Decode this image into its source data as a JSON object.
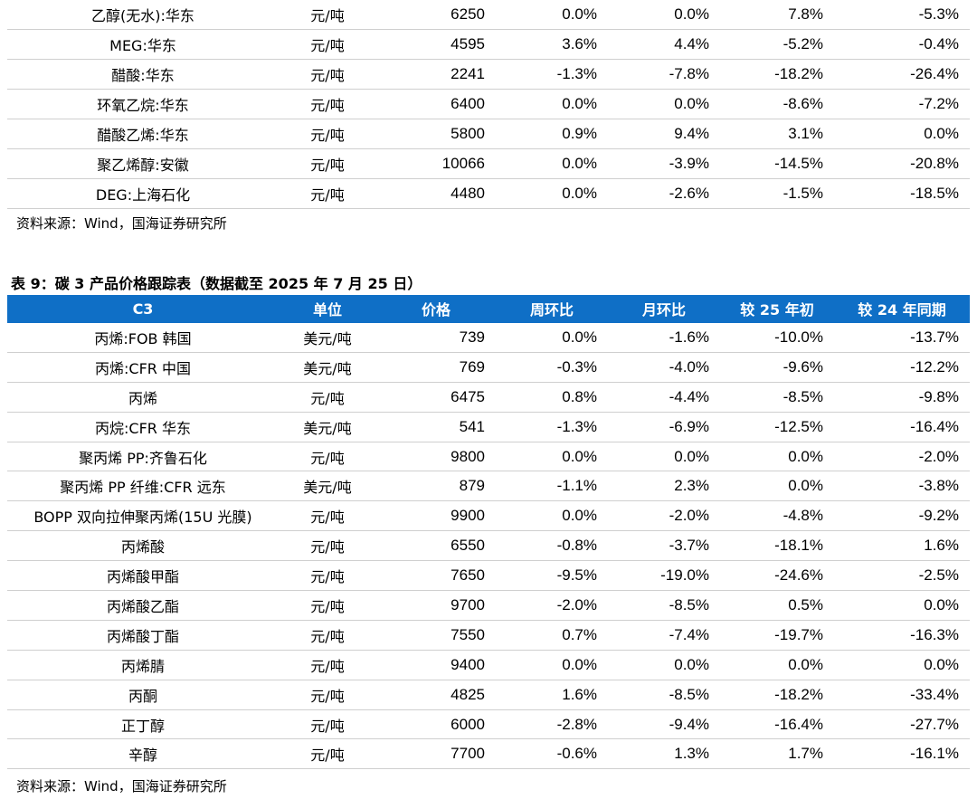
{
  "table1": {
    "rows": [
      [
        "乙醇(无水):华东",
        "元/吨",
        "6250",
        "0.0%",
        "0.0%",
        "7.8%",
        "-5.3%"
      ],
      [
        "MEG:华东",
        "元/吨",
        "4595",
        "3.6%",
        "4.4%",
        "-5.2%",
        "-0.4%"
      ],
      [
        "醋酸:华东",
        "元/吨",
        "2241",
        "-1.3%",
        "-7.8%",
        "-18.2%",
        "-26.4%"
      ],
      [
        "环氧乙烷:华东",
        "元/吨",
        "6400",
        "0.0%",
        "0.0%",
        "-8.6%",
        "-7.2%"
      ],
      [
        "醋酸乙烯:华东",
        "元/吨",
        "5800",
        "0.9%",
        "9.4%",
        "3.1%",
        "0.0%"
      ],
      [
        "聚乙烯醇:安徽",
        "元/吨",
        "10066",
        "0.0%",
        "-3.9%",
        "-14.5%",
        "-20.8%"
      ],
      [
        "DEG:上海石化",
        "元/吨",
        "4480",
        "0.0%",
        "-2.6%",
        "-1.5%",
        "-18.5%"
      ]
    ],
    "source": "资料来源：Wind，国海证券研究所"
  },
  "caption": "表 9：碳 3 产品价格跟踪表（数据截至 2025 年 7 月 25 日）",
  "table2": {
    "headers": [
      "C3",
      "单位",
      "价格",
      "周环比",
      "月环比",
      "较 25 年初",
      "较 24 年同期"
    ],
    "rows": [
      [
        "丙烯:FOB 韩国",
        "美元/吨",
        "739",
        "0.0%",
        "-1.6%",
        "-10.0%",
        "-13.7%"
      ],
      [
        "丙烯:CFR 中国",
        "美元/吨",
        "769",
        "-0.3%",
        "-4.0%",
        "-9.6%",
        "-12.2%"
      ],
      [
        "丙烯",
        "元/吨",
        "6475",
        "0.8%",
        "-4.4%",
        "-8.5%",
        "-9.8%"
      ],
      [
        "丙烷:CFR 华东",
        "美元/吨",
        "541",
        "-1.3%",
        "-6.9%",
        "-12.5%",
        "-16.4%"
      ],
      [
        "聚丙烯 PP:齐鲁石化",
        "元/吨",
        "9800",
        "0.0%",
        "0.0%",
        "0.0%",
        "-2.0%"
      ],
      [
        "聚丙烯 PP 纤维:CFR 远东",
        "美元/吨",
        "879",
        "-1.1%",
        "2.3%",
        "0.0%",
        "-3.8%"
      ],
      [
        "BOPP 双向拉伸聚丙烯(15U 光膜)",
        "元/吨",
        "9900",
        "0.0%",
        "-2.0%",
        "-4.8%",
        "-9.2%"
      ],
      [
        "丙烯酸",
        "元/吨",
        "6550",
        "-0.8%",
        "-3.7%",
        "-18.1%",
        "1.6%"
      ],
      [
        "丙烯酸甲酯",
        "元/吨",
        "7650",
        "-9.5%",
        "-19.0%",
        "-24.6%",
        "-2.5%"
      ],
      [
        "丙烯酸乙酯",
        "元/吨",
        "9700",
        "-2.0%",
        "-8.5%",
        "0.5%",
        "0.0%"
      ],
      [
        "丙烯酸丁酯",
        "元/吨",
        "7550",
        "0.7%",
        "-7.4%",
        "-19.7%",
        "-16.3%"
      ],
      [
        "丙烯腈",
        "元/吨",
        "9400",
        "0.0%",
        "0.0%",
        "0.0%",
        "0.0%"
      ],
      [
        "丙酮",
        "元/吨",
        "4825",
        "1.6%",
        "-8.5%",
        "-18.2%",
        "-33.4%"
      ],
      [
        "正丁醇",
        "元/吨",
        "6000",
        "-2.8%",
        "-9.4%",
        "-16.4%",
        "-27.7%"
      ],
      [
        "辛醇",
        "元/吨",
        "7700",
        "-0.6%",
        "1.3%",
        "1.7%",
        "-16.1%"
      ]
    ],
    "source": "资料来源：Wind，国海证券研究所"
  },
  "colors": {
    "header_bg": "#0f6fc6",
    "header_text": "#ffffff",
    "row_border": "#cfcfcf"
  }
}
